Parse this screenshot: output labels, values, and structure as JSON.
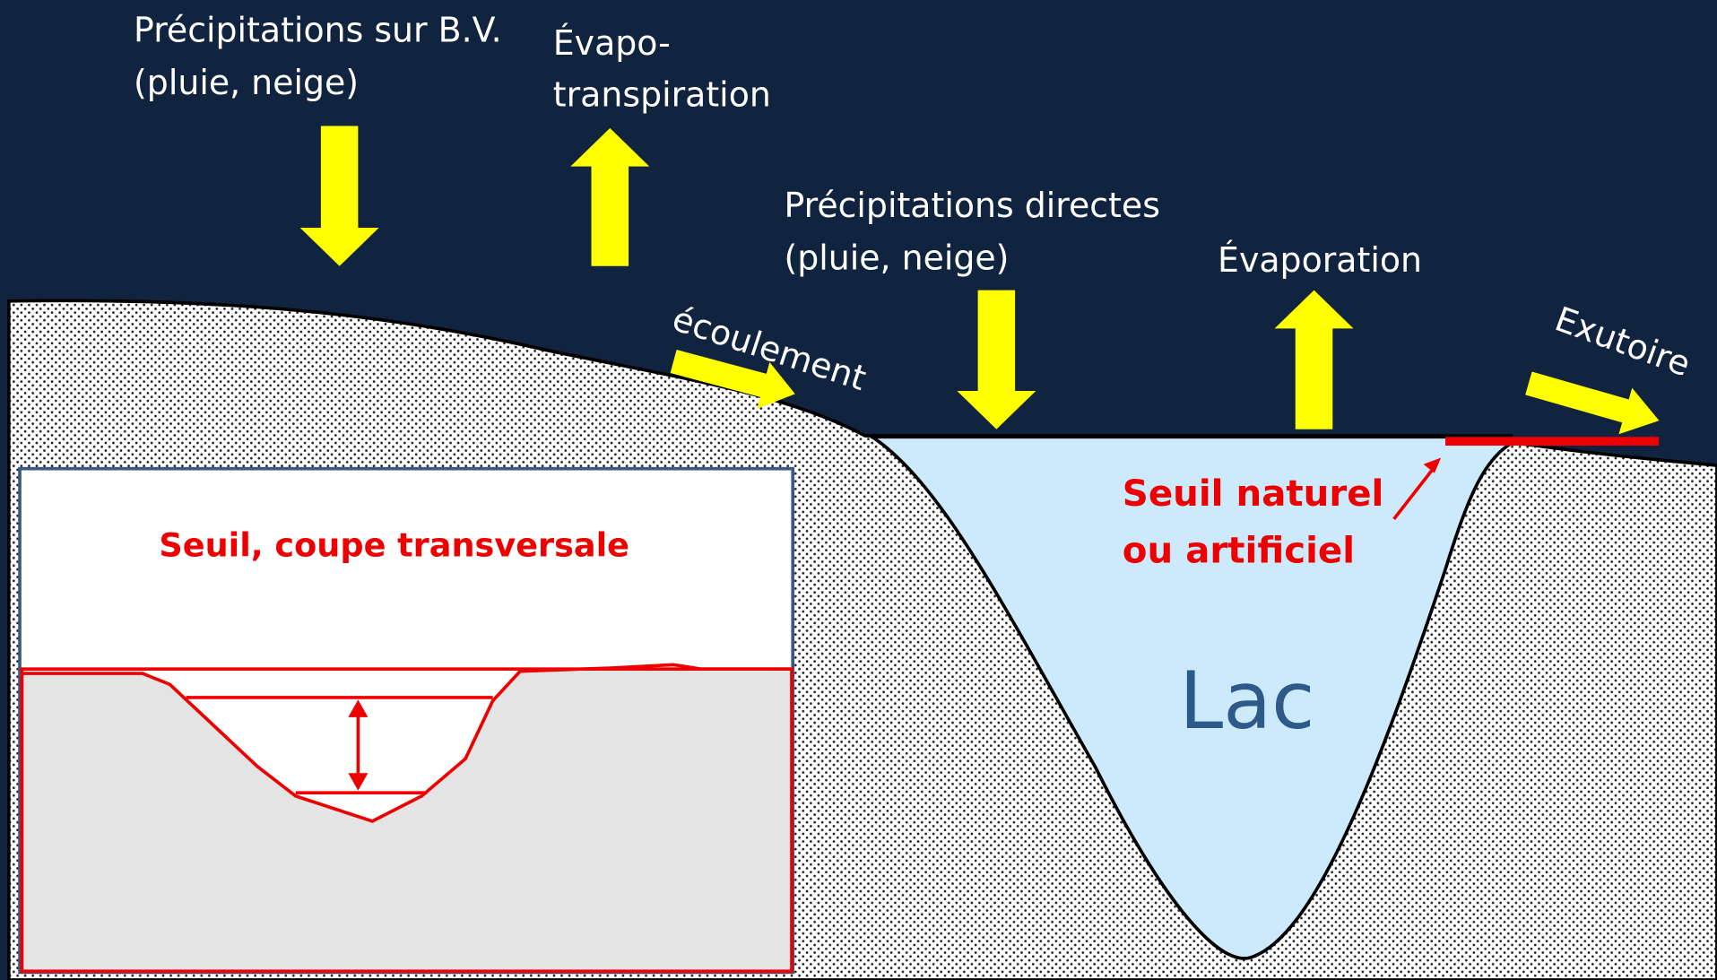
{
  "labels": {
    "precip_bv": [
      "Précipitations sur B.V.",
      "(pluie, neige)"
    ],
    "evapotranspiration": [
      "Évapo-",
      "transpiration"
    ],
    "precip_directes": [
      "Précipitations directes",
      "(pluie, neige)"
    ],
    "evaporation": "Évaporation",
    "ecoulement": "écoulement",
    "exutoire": "Exutoire",
    "seuil": [
      "Seuil naturel",
      "ou artificiel"
    ],
    "lac": "Lac"
  },
  "inset": {
    "title": "Seuil, coupe transversale"
  }
}
